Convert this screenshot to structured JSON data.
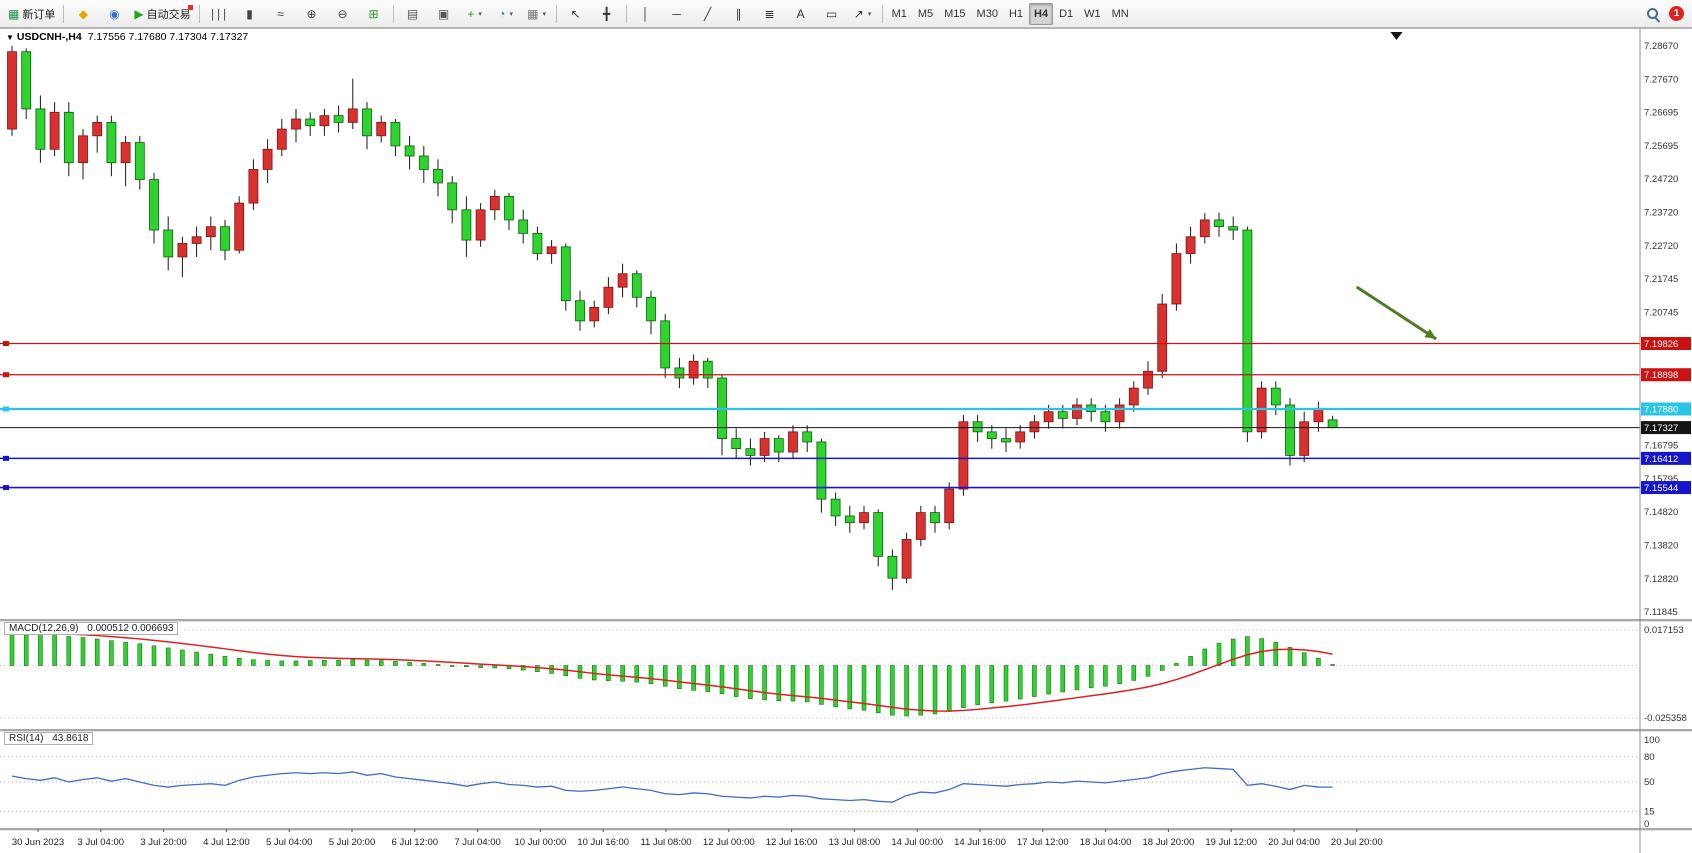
{
  "toolbar": {
    "buttons": [
      {
        "name": "new-order-button",
        "glyph": "▦",
        "glyph_color": "#1f8f4d",
        "label": "新订单"
      },
      {
        "sep": true
      },
      {
        "name": "charts-wizard-icon",
        "glyph": "◆",
        "glyph_color": "#eaa400"
      },
      {
        "name": "expert-advisors-icon",
        "glyph": "◉",
        "glyph_color": "#3a6fd8"
      },
      {
        "name": "auto-trading-button",
        "glyph": "▶",
        "glyph_color": "#27a327",
        "label": "自动交易",
        "badge": true
      },
      {
        "sep": true
      },
      {
        "name": "bar-chart-button",
        "glyph": "∣∣∣",
        "glyph_color": "#444"
      },
      {
        "name": "candlestick-chart-button",
        "glyph": "▮",
        "glyph_color": "#444"
      },
      {
        "name": "line-chart-button",
        "glyph": "≈",
        "glyph_color": "#444"
      },
      {
        "name": "zoom-in-button",
        "glyph": "⊕",
        "glyph_color": "#444"
      },
      {
        "name": "zoom-out-button",
        "glyph": "⊖",
        "glyph_color": "#444"
      },
      {
        "name": "tile-windows-button",
        "glyph": "⊞",
        "glyph_color": "#2c9c2c"
      },
      {
        "sep": true
      },
      {
        "name": "charts-list-button",
        "glyph": "▤",
        "glyph_color": "#555"
      },
      {
        "name": "indicators-list-button",
        "glyph": "▣",
        "glyph_color": "#555"
      },
      {
        "name": "add-indicator-button",
        "glyph": "+",
        "glyph_color": "#2c9c2c",
        "caret": true
      },
      {
        "name": "periods-button",
        "glyph": "◔",
        "glyph_color": "#3a6fd8",
        "caret": true
      },
      {
        "name": "templates-button",
        "glyph": "▦",
        "glyph_color": "#777",
        "caret": true
      },
      {
        "sep": true
      },
      {
        "name": "cursor-button",
        "glyph": "↖",
        "glyph_color": "#333"
      },
      {
        "name": "crosshair-button",
        "glyph": "╋",
        "glyph_color": "#333"
      },
      {
        "sep": true
      },
      {
        "name": "vertical-line-button",
        "glyph": "│",
        "glyph_color": "#333"
      },
      {
        "name": "horizontal-line-button",
        "glyph": "─",
        "glyph_color": "#333"
      },
      {
        "name": "trendline-button",
        "glyph": "╱",
        "glyph_color": "#333"
      },
      {
        "name": "channel-button",
        "glyph": "∥",
        "glyph_color": "#333"
      },
      {
        "name": "fibonacci-button",
        "glyph": "≣",
        "glyph_color": "#333"
      },
      {
        "name": "text-button",
        "glyph": "A",
        "glyph_color": "#333"
      },
      {
        "name": "label-button",
        "glyph": "▭",
        "glyph_color": "#333"
      },
      {
        "name": "arrows-button",
        "glyph": "↗",
        "glyph_color": "#333",
        "caret": true
      },
      {
        "sep": true
      }
    ],
    "timeframes": [
      "M1",
      "M5",
      "M15",
      "M30",
      "H1",
      "H4",
      "D1",
      "W1",
      "MN"
    ],
    "active_timeframe": "H4",
    "badge_count": "1"
  },
  "chart": {
    "symbol_period": "USDCNH-,H4",
    "ohlc_text": "7.17556 7.17680 7.17304 7.17327"
  },
  "indicators": {
    "macd": {
      "title": "MACD(12,26,9)",
      "values": "0.000512 0.006693"
    },
    "rsi": {
      "title": "RSI(14)",
      "values": "43.8618"
    }
  },
  "annotations": {
    "arrow": {
      "color": "#4c7d22",
      "from": {
        "bar": 94.7,
        "price": 7.21506
      },
      "to": {
        "bar": 100.3,
        "price": 7.1996
      }
    },
    "shift_marker": {
      "bar": 97.5
    }
  },
  "chart_data": [
    {
      "type": "candlestick",
      "symbol": "USDCNH-",
      "period": "H4",
      "current_ohlc": {
        "open": "7.17556",
        "high": "7.17680",
        "low": "7.17304",
        "close": "7.17327"
      },
      "up_color": "#d93030",
      "down_color": "#2fd32f",
      "ylim": [
        7.11845,
        7.2867
      ],
      "y_axis_labels": [
        "7.28670",
        "7.27670",
        "7.26695",
        "7.25695",
        "7.24720",
        "7.23720",
        "7.22720",
        "7.21745",
        "7.20745",
        "7.16795",
        "7.15795",
        "7.14820",
        "7.13820",
        "7.12820",
        "7.11845"
      ],
      "x_labels": [
        "30 Jun 2023",
        "3 Jul 04:00",
        "3 Jul 20:00",
        "4 Jul 12:00",
        "5 Jul 04:00",
        "5 Jul 20:00",
        "6 Jul 12:00",
        "7 Jul 04:00",
        "10 Jul 00:00",
        "10 Jul 16:00",
        "11 Jul 08:00",
        "12 Jul 00:00",
        "12 Jul 16:00",
        "13 Jul 08:00",
        "14 Jul 00:00",
        "14 Jul 16:00",
        "17 Jul 12:00",
        "18 Jul 04:00",
        "18 Jul 20:00",
        "19 Jul 12:00",
        "20 Jul 04:00",
        "20 Jul 20:00"
      ],
      "horizontal_lines": [
        {
          "price": 7.19826,
          "label": "7.19826",
          "color": "#cc1111",
          "width": 1.2
        },
        {
          "price": 7.18898,
          "label": "7.18898",
          "color": "#cc1111",
          "width": 1.2
        },
        {
          "price": 7.1788,
          "label": "7.17880",
          "color": "#2bc4e8",
          "width": 2.2
        },
        {
          "price": 7.16412,
          "label": "7.16412",
          "color": "#1515cc",
          "width": 1.6
        },
        {
          "price": 7.15544,
          "label": "7.15544",
          "color": "#1515cc",
          "width": 1.6
        }
      ],
      "current_price_line": {
        "price": 7.17327,
        "label": "7.17327",
        "color": "#141414"
      },
      "candles": [
        [
          7.262,
          7.2867,
          7.26,
          7.285
        ],
        [
          7.285,
          7.286,
          7.265,
          7.268
        ],
        [
          7.268,
          7.272,
          7.252,
          7.256
        ],
        [
          7.256,
          7.27,
          7.254,
          7.267
        ],
        [
          7.267,
          7.27,
          7.248,
          7.252
        ],
        [
          7.252,
          7.262,
          7.247,
          7.26
        ],
        [
          7.26,
          7.266,
          7.255,
          7.264
        ],
        [
          7.264,
          7.266,
          7.248,
          7.252
        ],
        [
          7.252,
          7.26,
          7.245,
          7.258
        ],
        [
          7.258,
          7.26,
          7.244,
          7.247
        ],
        [
          7.247,
          7.249,
          7.228,
          7.232
        ],
        [
          7.232,
          7.236,
          7.22,
          7.224
        ],
        [
          7.224,
          7.23,
          7.218,
          7.228
        ],
        [
          7.228,
          7.233,
          7.224,
          7.23
        ],
        [
          7.23,
          7.236,
          7.226,
          7.233
        ],
        [
          7.233,
          7.235,
          7.223,
          7.226
        ],
        [
          7.226,
          7.242,
          7.225,
          7.24
        ],
        [
          7.24,
          7.253,
          7.238,
          7.25
        ],
        [
          7.25,
          7.259,
          7.246,
          7.256
        ],
        [
          7.256,
          7.265,
          7.254,
          7.262
        ],
        [
          7.262,
          7.268,
          7.258,
          7.265
        ],
        [
          7.265,
          7.267,
          7.26,
          7.263
        ],
        [
          7.263,
          7.268,
          7.26,
          7.266
        ],
        [
          7.266,
          7.269,
          7.261,
          7.264
        ],
        [
          7.264,
          7.277,
          7.262,
          7.268
        ],
        [
          7.268,
          7.27,
          7.256,
          7.26
        ],
        [
          7.26,
          7.266,
          7.258,
          7.264
        ],
        [
          7.264,
          7.265,
          7.254,
          7.257
        ],
        [
          7.257,
          7.26,
          7.25,
          7.254
        ],
        [
          7.254,
          7.257,
          7.246,
          7.25
        ],
        [
          7.25,
          7.253,
          7.242,
          7.246
        ],
        [
          7.246,
          7.248,
          7.234,
          7.238
        ],
        [
          7.238,
          7.242,
          7.224,
          7.229
        ],
        [
          7.229,
          7.24,
          7.227,
          7.238
        ],
        [
          7.238,
          7.244,
          7.235,
          7.242
        ],
        [
          7.242,
          7.243,
          7.232,
          7.235
        ],
        [
          7.235,
          7.238,
          7.228,
          7.231
        ],
        [
          7.231,
          7.233,
          7.223,
          7.225
        ],
        [
          7.225,
          7.229,
          7.222,
          7.227
        ],
        [
          7.227,
          7.228,
          7.208,
          7.211
        ],
        [
          7.211,
          7.214,
          7.202,
          7.205
        ],
        [
          7.205,
          7.211,
          7.203,
          7.209
        ],
        [
          7.209,
          7.218,
          7.207,
          7.215
        ],
        [
          7.215,
          7.222,
          7.212,
          7.219
        ],
        [
          7.219,
          7.22,
          7.209,
          7.212
        ],
        [
          7.212,
          7.214,
          7.201,
          7.205
        ],
        [
          7.205,
          7.207,
          7.188,
          7.191
        ],
        [
          7.191,
          7.194,
          7.185,
          7.188
        ],
        [
          7.188,
          7.195,
          7.186,
          7.193
        ],
        [
          7.193,
          7.194,
          7.185,
          7.188
        ],
        [
          7.188,
          7.189,
          7.165,
          7.17
        ],
        [
          7.17,
          7.173,
          7.164,
          7.167
        ],
        [
          7.167,
          7.17,
          7.162,
          7.165
        ],
        [
          7.165,
          7.172,
          7.163,
          7.17
        ],
        [
          7.17,
          7.171,
          7.163,
          7.166
        ],
        [
          7.166,
          7.174,
          7.164,
          7.172
        ],
        [
          7.172,
          7.174,
          7.166,
          7.169
        ],
        [
          7.169,
          7.17,
          7.148,
          7.152
        ],
        [
          7.152,
          7.154,
          7.144,
          7.147
        ],
        [
          7.147,
          7.15,
          7.142,
          7.145
        ],
        [
          7.145,
          7.15,
          7.143,
          7.148
        ],
        [
          7.148,
          7.149,
          7.132,
          7.135
        ],
        [
          7.135,
          7.137,
          7.125,
          7.1285
        ],
        [
          7.1285,
          7.142,
          7.127,
          7.14
        ],
        [
          7.14,
          7.15,
          7.138,
          7.148
        ],
        [
          7.148,
          7.15,
          7.142,
          7.145
        ],
        [
          7.145,
          7.157,
          7.143,
          7.155
        ],
        [
          7.155,
          7.177,
          7.153,
          7.175
        ],
        [
          7.175,
          7.177,
          7.169,
          7.172
        ],
        [
          7.172,
          7.174,
          7.167,
          7.17
        ],
        [
          7.17,
          7.173,
          7.166,
          7.169
        ],
        [
          7.169,
          7.174,
          7.167,
          7.172
        ],
        [
          7.172,
          7.177,
          7.17,
          7.175
        ],
        [
          7.175,
          7.18,
          7.173,
          7.178
        ],
        [
          7.178,
          7.18,
          7.173,
          7.176
        ],
        [
          7.176,
          7.182,
          7.174,
          7.18
        ],
        [
          7.18,
          7.182,
          7.175,
          7.178
        ],
        [
          7.178,
          7.18,
          7.172,
          7.175
        ],
        [
          7.175,
          7.182,
          7.173,
          7.18
        ],
        [
          7.18,
          7.187,
          7.178,
          7.185
        ],
        [
          7.185,
          7.193,
          7.183,
          7.19
        ],
        [
          7.19,
          7.213,
          7.188,
          7.21
        ],
        [
          7.21,
          7.228,
          7.208,
          7.225
        ],
        [
          7.225,
          7.233,
          7.222,
          7.23
        ],
        [
          7.23,
          7.237,
          7.228,
          7.235
        ],
        [
          7.235,
          7.2372,
          7.23,
          7.233
        ],
        [
          7.233,
          7.236,
          7.229,
          7.232
        ],
        [
          7.232,
          7.233,
          7.169,
          7.172
        ],
        [
          7.172,
          7.187,
          7.17,
          7.185
        ],
        [
          7.185,
          7.187,
          7.177,
          7.18
        ],
        [
          7.18,
          7.182,
          7.162,
          7.165
        ],
        [
          7.165,
          7.178,
          7.163,
          7.175
        ],
        [
          7.175,
          7.181,
          7.172,
          7.179
        ],
        [
          7.17556,
          7.1768,
          7.17304,
          7.17327
        ]
      ]
    },
    {
      "type": "bar",
      "name": "MACD(12,26,9)",
      "current_values": "0.000512 0.006693",
      "histogram_color": "#2fd32f",
      "signal_color": "#e02020",
      "ylim": [
        -0.025358,
        0.017153
      ],
      "y_axis_labels": [
        "0.017153",
        "-0.025358"
      ],
      "values": [
        0.016,
        0.0155,
        0.015,
        0.0148,
        0.014,
        0.0135,
        0.0128,
        0.012,
        0.0112,
        0.0105,
        0.0095,
        0.0085,
        0.0075,
        0.0065,
        0.0055,
        0.0045,
        0.0035,
        0.0028,
        0.0024,
        0.0022,
        0.0022,
        0.0024,
        0.0026,
        0.0026,
        0.0028,
        0.0026,
        0.0024,
        0.002,
        0.0015,
        0.001,
        0.0005,
        0.0,
        -0.0006,
        -0.001,
        -0.0012,
        -0.0016,
        -0.0022,
        -0.003,
        -0.0038,
        -0.005,
        -0.0062,
        -0.007,
        -0.0074,
        -0.0076,
        -0.008,
        -0.0088,
        -0.01,
        -0.0112,
        -0.012,
        -0.0126,
        -0.0136,
        -0.015,
        -0.016,
        -0.0166,
        -0.017,
        -0.0172,
        -0.0176,
        -0.0188,
        -0.02,
        -0.021,
        -0.0216,
        -0.0228,
        -0.024,
        -0.0244,
        -0.024,
        -0.0234,
        -0.0222,
        -0.0204,
        -0.019,
        -0.018,
        -0.0172,
        -0.0162,
        -0.015,
        -0.0138,
        -0.0128,
        -0.0118,
        -0.0108,
        -0.01,
        -0.0088,
        -0.0072,
        -0.0052,
        -0.0024,
        0.001,
        0.0045,
        0.008,
        0.0108,
        0.0128,
        0.014,
        0.013,
        0.0112,
        0.0088,
        0.0062,
        0.0036,
        0.0005
      ]
    },
    {
      "type": "line",
      "name": "RSI(14)",
      "current_value": "43.8618",
      "line_color": "#4169cf",
      "ylim": [
        0,
        100
      ],
      "levels": [
        80,
        50,
        15
      ],
      "y_axis_labels": [
        "100",
        "80",
        "50",
        "15",
        "0"
      ],
      "values": [
        57,
        54,
        52,
        55,
        50,
        53,
        55,
        51,
        54,
        50,
        46,
        44,
        46,
        47,
        48,
        46,
        52,
        56,
        58,
        60,
        61,
        60,
        61,
        60,
        62,
        58,
        60,
        56,
        54,
        52,
        50,
        48,
        45,
        48,
        50,
        47,
        46,
        44,
        45,
        40,
        39,
        40,
        42,
        44,
        42,
        40,
        36,
        35,
        37,
        36,
        33,
        32,
        31,
        33,
        32,
        34,
        33,
        30,
        29,
        28,
        29,
        27,
        26,
        34,
        38,
        37,
        41,
        48,
        47,
        46,
        45,
        47,
        48,
        50,
        49,
        51,
        50,
        49,
        51,
        53,
        55,
        60,
        63,
        65,
        67,
        66,
        65,
        46,
        48,
        45,
        41,
        46,
        44,
        43.8618
      ]
    }
  ]
}
